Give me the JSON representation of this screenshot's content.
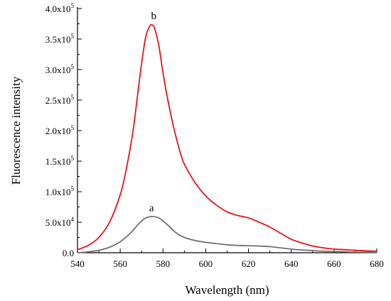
{
  "chart_data": {
    "type": "line",
    "xlabel": "Wavelength (nm)",
    "ylabel": "Fluorescence intensity",
    "xlim": [
      540,
      680
    ],
    "ylim": [
      0,
      400000
    ],
    "x_ticks": [
      540,
      560,
      580,
      600,
      620,
      640,
      660,
      680
    ],
    "x_tick_labels": [
      "540",
      "560",
      "580",
      "600",
      "620",
      "640",
      "660",
      "680"
    ],
    "y_ticks": [
      {
        "value": 0,
        "mantissa": "0.0",
        "exp": ""
      },
      {
        "value": 50000,
        "mantissa": "5.0x10",
        "exp": "4"
      },
      {
        "value": 100000,
        "mantissa": "1.0x10",
        "exp": "5"
      },
      {
        "value": 150000,
        "mantissa": "1.5x10",
        "exp": "5"
      },
      {
        "value": 200000,
        "mantissa": "2.0x10",
        "exp": "5"
      },
      {
        "value": 250000,
        "mantissa": "2.5x10",
        "exp": "5"
      },
      {
        "value": 300000,
        "mantissa": "3.0x10",
        "exp": "5"
      },
      {
        "value": 350000,
        "mantissa": "3.5x10",
        "exp": "5"
      },
      {
        "value": 400000,
        "mantissa": "4.0x10",
        "exp": "5"
      }
    ],
    "grid": false,
    "series": [
      {
        "label": "b",
        "color": "#e8141c",
        "x": [
          540,
          545,
          550,
          555,
          560,
          563,
          566,
          568,
          570,
          572,
          574,
          575,
          576,
          578,
          580,
          582,
          585,
          588,
          590,
          595,
          600,
          605,
          610,
          615,
          620,
          625,
          630,
          635,
          640,
          645,
          650,
          655,
          660,
          665,
          670,
          675,
          680
        ],
        "y": [
          5000,
          12000,
          25000,
          50000,
          95000,
          140000,
          200000,
          255000,
          310000,
          355000,
          372000,
          373000,
          368000,
          340000,
          295000,
          255000,
          205000,
          165000,
          145000,
          115000,
          93000,
          78000,
          67000,
          61000,
          57000,
          50000,
          42000,
          32000,
          22000,
          16000,
          11000,
          8000,
          6000,
          5000,
          4000,
          3000,
          2500
        ]
      },
      {
        "label": "a",
        "color": "#707070",
        "x": [
          540,
          545,
          550,
          555,
          560,
          565,
          568,
          570,
          572,
          574,
          576,
          578,
          580,
          583,
          586,
          590,
          595,
          600,
          605,
          610,
          615,
          620,
          625,
          630,
          635,
          640,
          645,
          650,
          655,
          660,
          665,
          670,
          675,
          680
        ],
        "y": [
          0,
          1500,
          4000,
          9000,
          18000,
          33000,
          45000,
          52000,
          57000,
          59000,
          59000,
          57000,
          52000,
          43000,
          33000,
          25000,
          20000,
          17000,
          15000,
          13000,
          12000,
          11500,
          11000,
          10000,
          8000,
          6000,
          4500,
          3500,
          2500,
          2000,
          1500,
          1000,
          800,
          500
        ]
      }
    ]
  }
}
